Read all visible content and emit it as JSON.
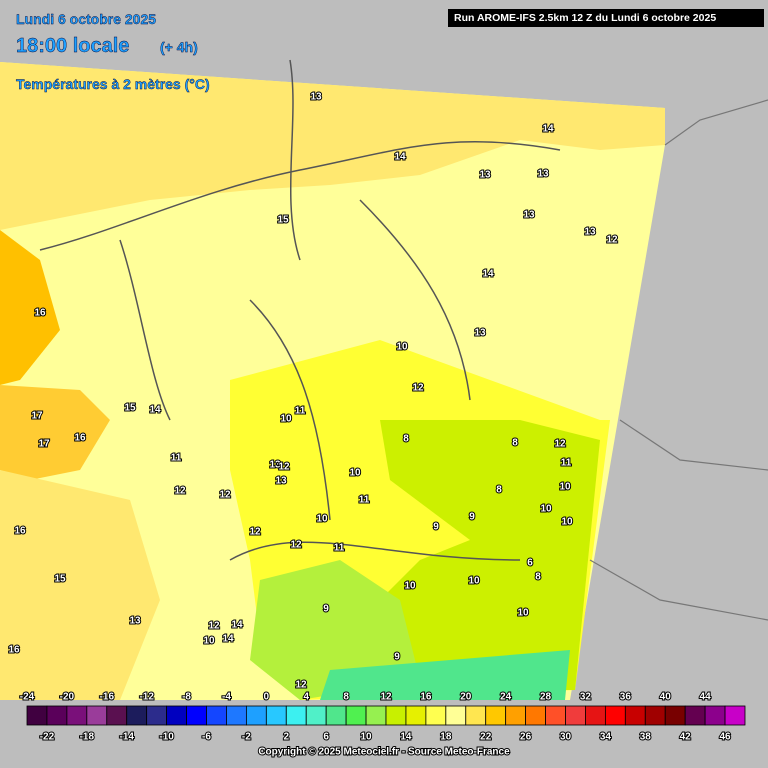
{
  "header": {
    "date": "Lundi 6 octobre 2025",
    "time": "18:00 locale",
    "offset": "(+ 4h)",
    "variable": "Températures à 2 mètres (°C)",
    "run": "Run AROME-IFS 2.5km 12 Z du Lundi 6 octobre 2025"
  },
  "contour_labels": [
    13,
    14,
    14,
    13,
    13,
    15,
    13,
    13,
    12,
    14,
    16,
    13,
    10,
    12,
    15,
    14,
    17,
    17,
    16,
    10,
    11,
    8,
    8,
    12,
    11,
    11,
    13,
    12,
    10,
    13,
    12,
    12,
    8,
    10,
    11,
    10,
    9,
    9,
    10,
    12,
    16,
    12,
    11,
    10,
    6,
    8,
    15,
    10,
    10,
    10,
    13,
    14,
    12,
    10,
    14,
    9,
    16,
    9,
    12
  ],
  "colorbar": {
    "ticks_top": [
      -24,
      -20,
      -16,
      -12,
      -8,
      -4,
      0,
      4,
      8,
      12,
      16,
      20,
      24,
      28,
      32,
      36,
      40,
      44
    ],
    "ticks_bottom": [
      -22,
      -18,
      -14,
      -10,
      -6,
      -2,
      2,
      6,
      10,
      14,
      18,
      22,
      26,
      30,
      34,
      38,
      42,
      46
    ],
    "colors": [
      "#400040",
      "#5a005a",
      "#7a107a",
      "#9a3c9a",
      "#5a1050",
      "#1c1c5c",
      "#2c2c8c",
      "#0000c0",
      "#0000ff",
      "#1446ff",
      "#1e78ff",
      "#1ea0ff",
      "#28c8ff",
      "#3cf0f0",
      "#50f0c8",
      "#50e68c",
      "#50f050",
      "#96f050",
      "#c8f000",
      "#e6f000",
      "#ffff50",
      "#ffff96",
      "#ffe650",
      "#ffc800",
      "#ffa000",
      "#ff7800",
      "#ff5028",
      "#f03c3c",
      "#e61414",
      "#ff0000",
      "#c80000",
      "#a00000",
      "#780000",
      "#640050",
      "#8c008c",
      "#c800c8"
    ]
  },
  "footer": "Copyright © 2025 Meteociel.fr - Source Meteo-France"
}
